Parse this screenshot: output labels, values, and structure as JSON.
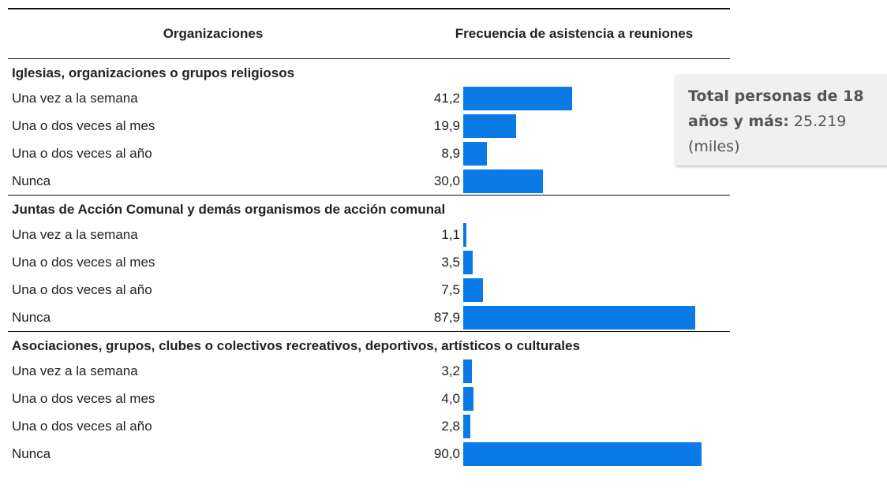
{
  "chart_data": {
    "type": "bar",
    "orientation": "horizontal",
    "column_headers": [
      "Organizaciones",
      "Frecuencia de asistencia a reuniones"
    ],
    "color": "#0a7be6",
    "xlim": [
      0,
      100
    ],
    "groups": [
      {
        "name": "Iglesias, organizaciones o grupos religiosos",
        "categories": [
          "Una vez a la semana",
          "Una o dos veces al mes",
          "Una o dos veces al año",
          "Nunca"
        ],
        "values": [
          41.2,
          19.9,
          8.9,
          30.0
        ],
        "value_labels": [
          "41,2",
          "19,9",
          "8,9",
          "30,0"
        ]
      },
      {
        "name": "Juntas de Acción Comunal y demás organismos de acción comunal",
        "categories": [
          "Una vez a la semana",
          "Una o dos veces al mes",
          "Una o dos veces al año",
          "Nunca"
        ],
        "values": [
          1.1,
          3.5,
          7.5,
          87.9
        ],
        "value_labels": [
          "1,1",
          "3,5",
          "7,5",
          "87,9"
        ]
      },
      {
        "name": "Asociaciones, grupos, clubes o colectivos recreativos, deportivos, artísticos o culturales",
        "categories": [
          "Una vez a la semana",
          "Una o dos veces al mes",
          "Una o dos veces al año",
          "Nunca"
        ],
        "values": [
          3.2,
          4.0,
          2.8,
          90.0
        ],
        "value_labels": [
          "3,2",
          "4,0",
          "2,8",
          "90,0"
        ]
      }
    ],
    "annotation": {
      "label": "Total personas de 18 años y más:",
      "value": "25.219",
      "unit": "(miles)"
    }
  }
}
